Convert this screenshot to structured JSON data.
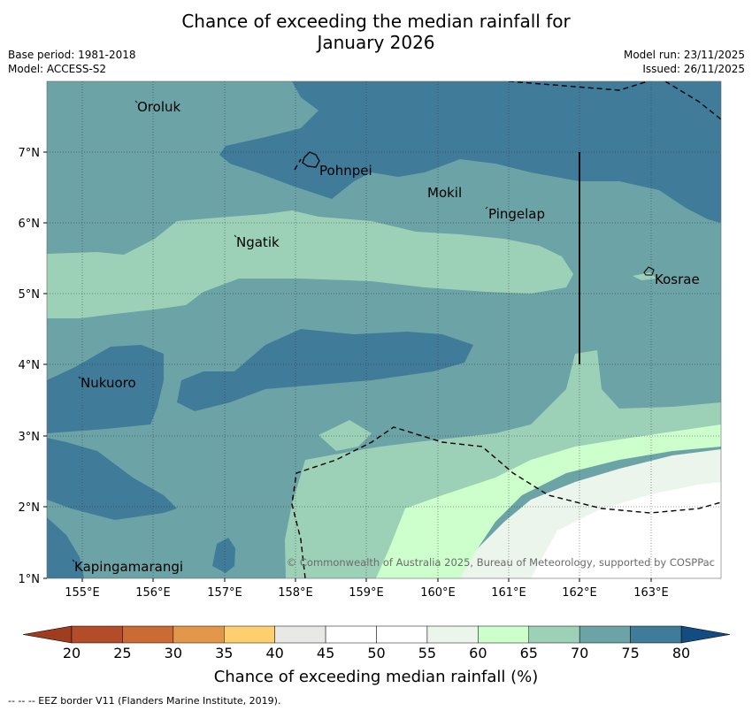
{
  "title_line1": "Chance of exceeding the median rainfall for",
  "title_line2": "January 2026",
  "base_period": "Base period: 1981-2018",
  "model": "Model: ACCESS-S2",
  "model_run": "Model run: 23/11/2025",
  "issued": "Issued: 26/11/2025",
  "copyright": "© Commonwealth of Australia 2025, Bureau of Meteorology, supported by COSPPac",
  "lon_ticks": [
    "155°E",
    "156°E",
    "157°E",
    "158°E",
    "159°E",
    "160°E",
    "161°E",
    "162°E",
    "163°E"
  ],
  "lat_ticks": [
    "7°N",
    "6°N",
    "5°N",
    "4°N",
    "3°N",
    "2°N",
    "1°N"
  ],
  "places": [
    "Oroluk",
    "Pohnpei",
    "Mokil",
    "Pingelap",
    "Ngatik",
    "Kosrae",
    "Nukuoro",
    "Kapingamarangi"
  ],
  "colorbar": {
    "ticks": [
      "20",
      "25",
      "30",
      "35",
      "40",
      "45",
      "50",
      "55",
      "60",
      "65",
      "70",
      "75",
      "80"
    ],
    "colors": [
      "#b34c28",
      "#cc6a33",
      "#e3974a",
      "#fdcf6e",
      "#e8e8e5",
      "#ffffff",
      "#ffffff",
      "#ebf5eb",
      "#ccffcc",
      "#9dd1b7",
      "#6ba3a6",
      "#417b9a"
    ],
    "under_color": "#a03c20",
    "over_color": "#124c80",
    "label": "Chance of exceeding median rainfall (%)"
  },
  "colors": {
    "c55": "#ebf5eb",
    "c60": "#ccffcc",
    "c65": "#9dd1b7",
    "c70": "#6ba3a6",
    "c75": "#417b9a",
    "c50": "#ffffff"
  },
  "footer": "--  --  -- EEZ border V11 (Flanders Marine Institute, 2019)."
}
